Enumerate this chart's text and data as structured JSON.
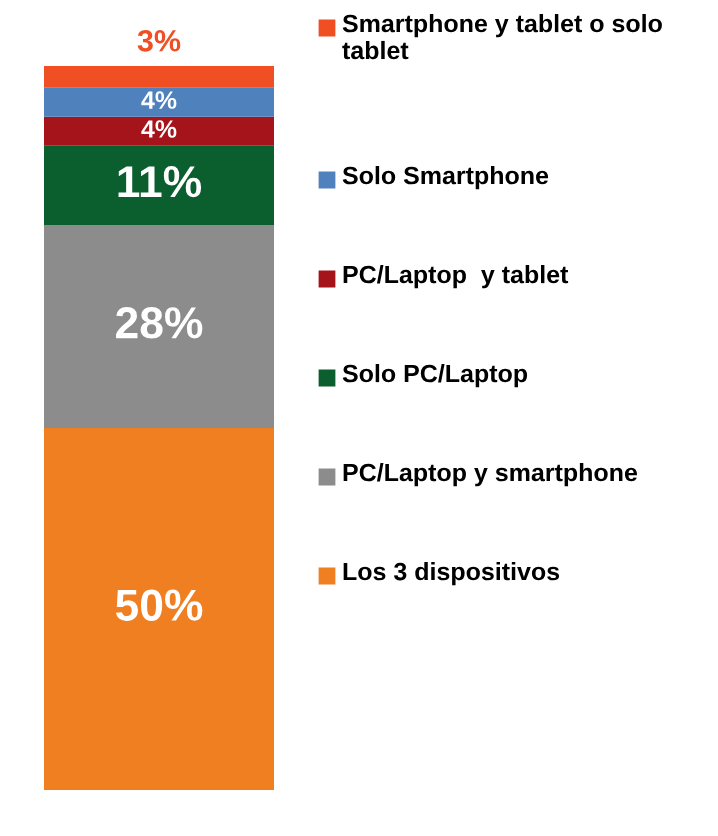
{
  "chart_data": {
    "type": "bar",
    "stacked": true,
    "categories": [
      null
    ],
    "legend": "right",
    "series": [
      {
        "name": "Los 3 dispositivos",
        "color": "#f07f22",
        "values": [
          50
        ],
        "value_labels": [
          "50%"
        ]
      },
      {
        "name": "PC/Laptop y smartphone",
        "color": "#8c8c8c",
        "values": [
          28
        ],
        "value_labels": [
          "28%"
        ]
      },
      {
        "name": "Solo PC/Laptop",
        "color": "#0b5e2e",
        "values": [
          11
        ],
        "value_labels": [
          "11%"
        ]
      },
      {
        "name": "PC/Laptop  y tablet",
        "color": "#a5131b",
        "values": [
          4
        ],
        "value_labels": [
          "4%"
        ]
      },
      {
        "name": "Solo Smartphone",
        "color": "#4f81bd",
        "values": [
          4
        ],
        "value_labels": [
          "4%"
        ]
      },
      {
        "name": "Smartphone y tablet o solo tablet",
        "color": "#f04e23",
        "values": [
          3
        ],
        "value_labels": [
          "3%"
        ]
      }
    ]
  }
}
